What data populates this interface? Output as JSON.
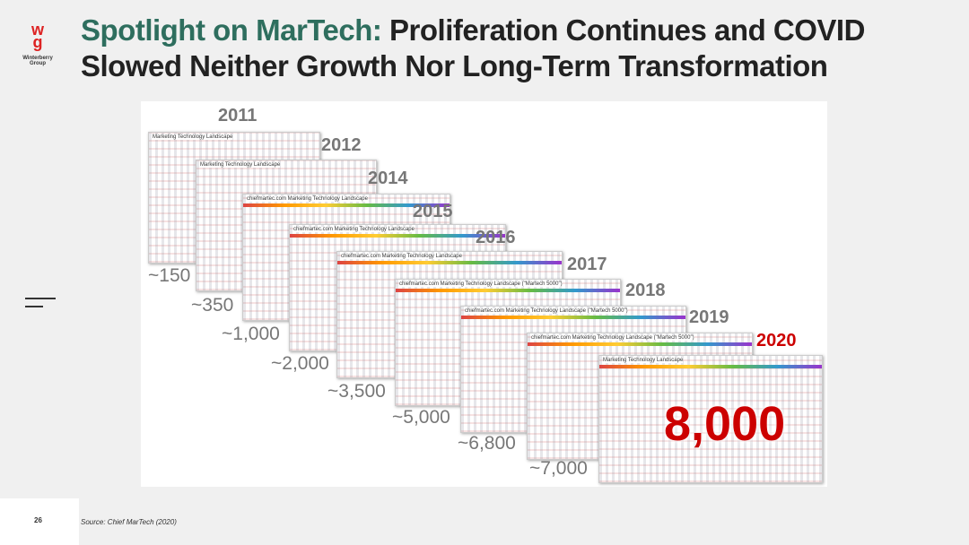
{
  "logo": {
    "lines": [
      "Winterberry",
      "Group"
    ]
  },
  "title": {
    "highlight": "Spotlight on MarTech:",
    "line1": "Proliferation Continues and COVID",
    "line2": "Slowed Neither Growth Nor Long-Term Transformation"
  },
  "landscapes": [
    {
      "year": "2011",
      "count": "~150",
      "heading": "Marketing Technology Landscape"
    },
    {
      "year": "2012",
      "count": "~350",
      "heading": "Marketing Technology Landscape"
    },
    {
      "year": "2014",
      "count": "~1,000",
      "heading": "chiefmartec.com Marketing Technology Landscape"
    },
    {
      "year": "2015",
      "count": "~2,000",
      "heading": "chiefmartec.com Marketing Technology Landscape"
    },
    {
      "year": "2016",
      "count": "~3,500",
      "heading": "chiefmartec.com Marketing Technology Landscape"
    },
    {
      "year": "2017",
      "count": "~5,000",
      "heading": "chiefmartec.com Marketing Technology Landscape (\"Martech 5000\")"
    },
    {
      "year": "2018",
      "count": "~6,800",
      "heading": "chiefmartec.com Marketing Technology Landscape (\"Martech 5000\")"
    },
    {
      "year": "2019",
      "count": "~7,000",
      "heading": "chiefmartec.com Marketing Technology Landscape (\"Martech 5000\")"
    },
    {
      "year": "2020",
      "count": "8,000",
      "heading": "Marketing Technology Landscape"
    }
  ],
  "page_number": "26",
  "source": "Source: Chief MarTech (2020)"
}
